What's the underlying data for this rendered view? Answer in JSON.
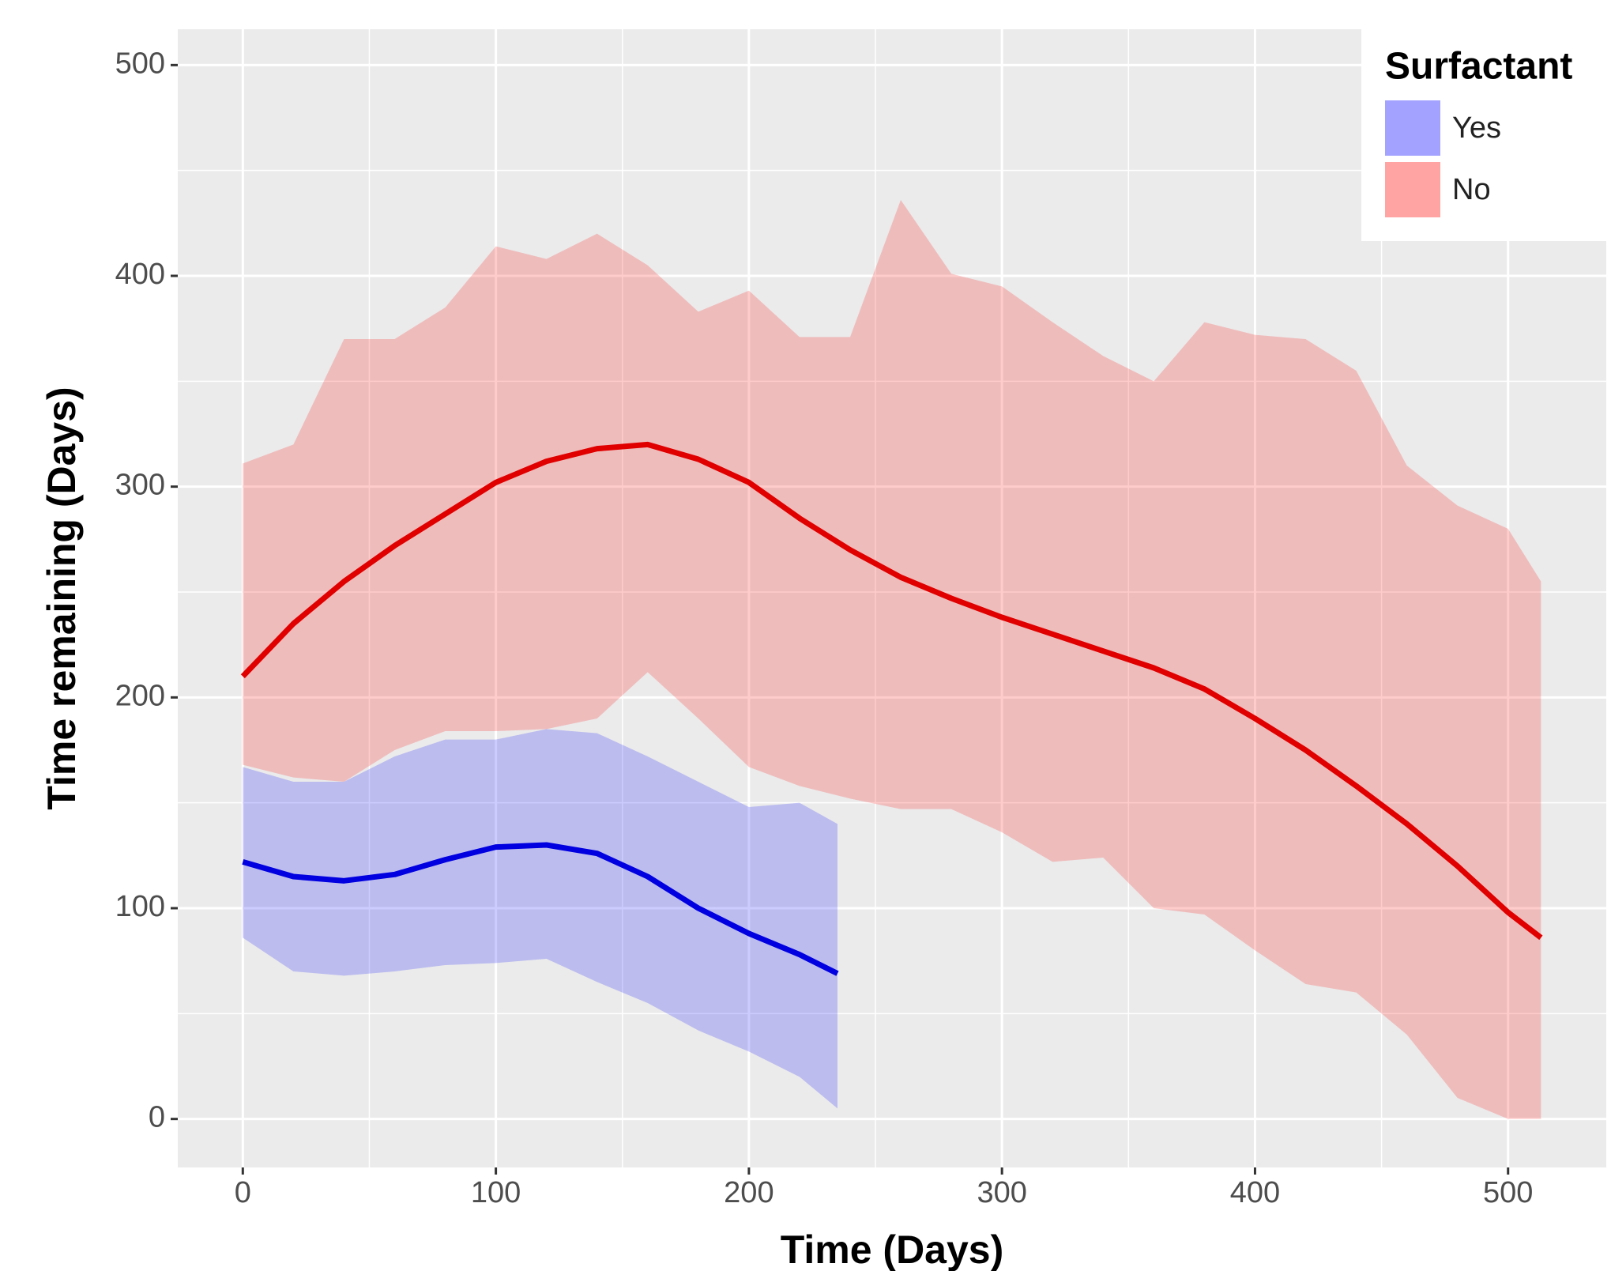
{
  "chart_data": {
    "type": "line_ribbon",
    "xlabel": "Time (Days)",
    "ylabel": "Time remaining (Days)",
    "legend_title": "Surfactant",
    "legend_position": "top-right",
    "xlim": [
      -25.7,
      538.8
    ],
    "ylim": [
      -23,
      517
    ],
    "xticks": [
      0,
      100,
      200,
      300,
      400,
      500
    ],
    "yticks": [
      0,
      100,
      200,
      300,
      400,
      500
    ],
    "x_minor_grid": [
      50,
      150,
      250,
      350,
      450
    ],
    "y_minor_grid": [
      50,
      150,
      250,
      350,
      450
    ],
    "grid": true,
    "background": "#ebebeb",
    "series": [
      {
        "name": "Yes",
        "color": "#0000e0",
        "fill_color": "rgba(0,0,255,0.2)",
        "x": [
          0,
          20,
          40,
          60,
          80,
          100,
          120,
          140,
          160,
          180,
          200,
          220,
          235
        ],
        "values": [
          122,
          115,
          113,
          116,
          123,
          129,
          130,
          126,
          115,
          100,
          88,
          78,
          69
        ],
        "upper": [
          167,
          160,
          160,
          172,
          180,
          180,
          185,
          183,
          172,
          160,
          148,
          150,
          140
        ],
        "lower": [
          86,
          70,
          68,
          70,
          73,
          74,
          76,
          65,
          55,
          42,
          32,
          20,
          5
        ]
      },
      {
        "name": "No",
        "color": "#e00000",
        "fill_color": "rgba(255,0,0,0.2)",
        "x": [
          0,
          20,
          40,
          60,
          80,
          100,
          120,
          140,
          160,
          180,
          200,
          220,
          240,
          260,
          280,
          300,
          320,
          340,
          360,
          380,
          400,
          420,
          440,
          460,
          480,
          500,
          513
        ],
        "values": [
          210,
          235,
          255,
          272,
          287,
          302,
          312,
          318,
          320,
          313,
          302,
          285,
          270,
          257,
          247,
          238,
          230,
          222,
          214,
          204,
          190,
          175,
          158,
          140,
          120,
          98,
          86
        ],
        "upper": [
          311,
          320,
          370,
          370,
          385,
          414,
          408,
          420,
          405,
          383,
          393,
          371,
          371,
          436,
          401,
          395,
          378,
          362,
          350,
          378,
          372,
          370,
          355,
          310,
          291,
          280,
          255
        ],
        "lower": [
          168,
          162,
          160,
          175,
          184,
          184,
          185,
          190,
          212,
          190,
          167,
          158,
          152,
          147,
          147,
          136,
          122,
          124,
          100,
          97,
          80,
          64,
          60,
          40,
          10,
          0,
          0
        ]
      }
    ]
  }
}
